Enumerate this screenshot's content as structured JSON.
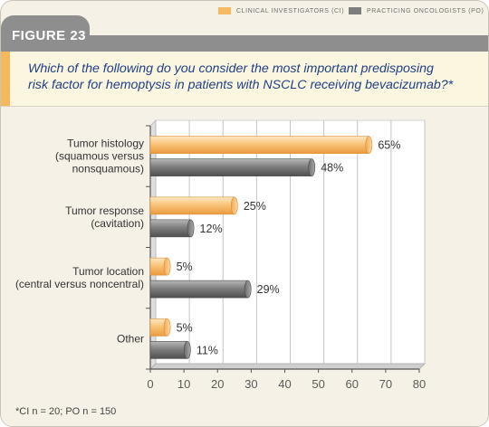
{
  "figure": {
    "label": "FIGURE 23"
  },
  "legend": [
    {
      "name": "CLINICAL INVESTIGATORS (CI)",
      "color": "#f7b960"
    },
    {
      "name": "PRACTICING ONCOLOGISTS (PO)",
      "color": "#7d7d7d"
    }
  ],
  "question": {
    "line1": "Which of the following do you consider the most important predisposing",
    "line2": "risk factor for hemoptysis in patients with NSCLC receiving bevacizumab?*"
  },
  "footnote": "*CI n = 20; PO n = 150",
  "chart_data": {
    "type": "bar",
    "orientation": "horizontal",
    "categories": [
      [
        "Tumor histology",
        "(squamous versus",
        "nonsquamous)"
      ],
      [
        "Tumor response",
        "(cavitation)"
      ],
      [
        "Tumor location",
        "(central versus noncentral)"
      ],
      [
        "Other"
      ]
    ],
    "series": [
      {
        "name": "CLINICAL INVESTIGATORS (CI)",
        "values": [
          65,
          25,
          5,
          5
        ],
        "labels": [
          "65%",
          "25%",
          "5%",
          "5%"
        ],
        "color": "#f7b960"
      },
      {
        "name": "PRACTICING ONCOLOGISTS (PO)",
        "values": [
          48,
          12,
          29,
          11
        ],
        "labels": [
          "48%",
          "12%",
          "29%",
          "11%"
        ],
        "color": "#7d7d7d"
      }
    ],
    "xlim": [
      0,
      80
    ],
    "xticks": [
      0,
      10,
      20,
      30,
      40,
      50,
      60,
      70,
      80
    ],
    "grid": true
  }
}
